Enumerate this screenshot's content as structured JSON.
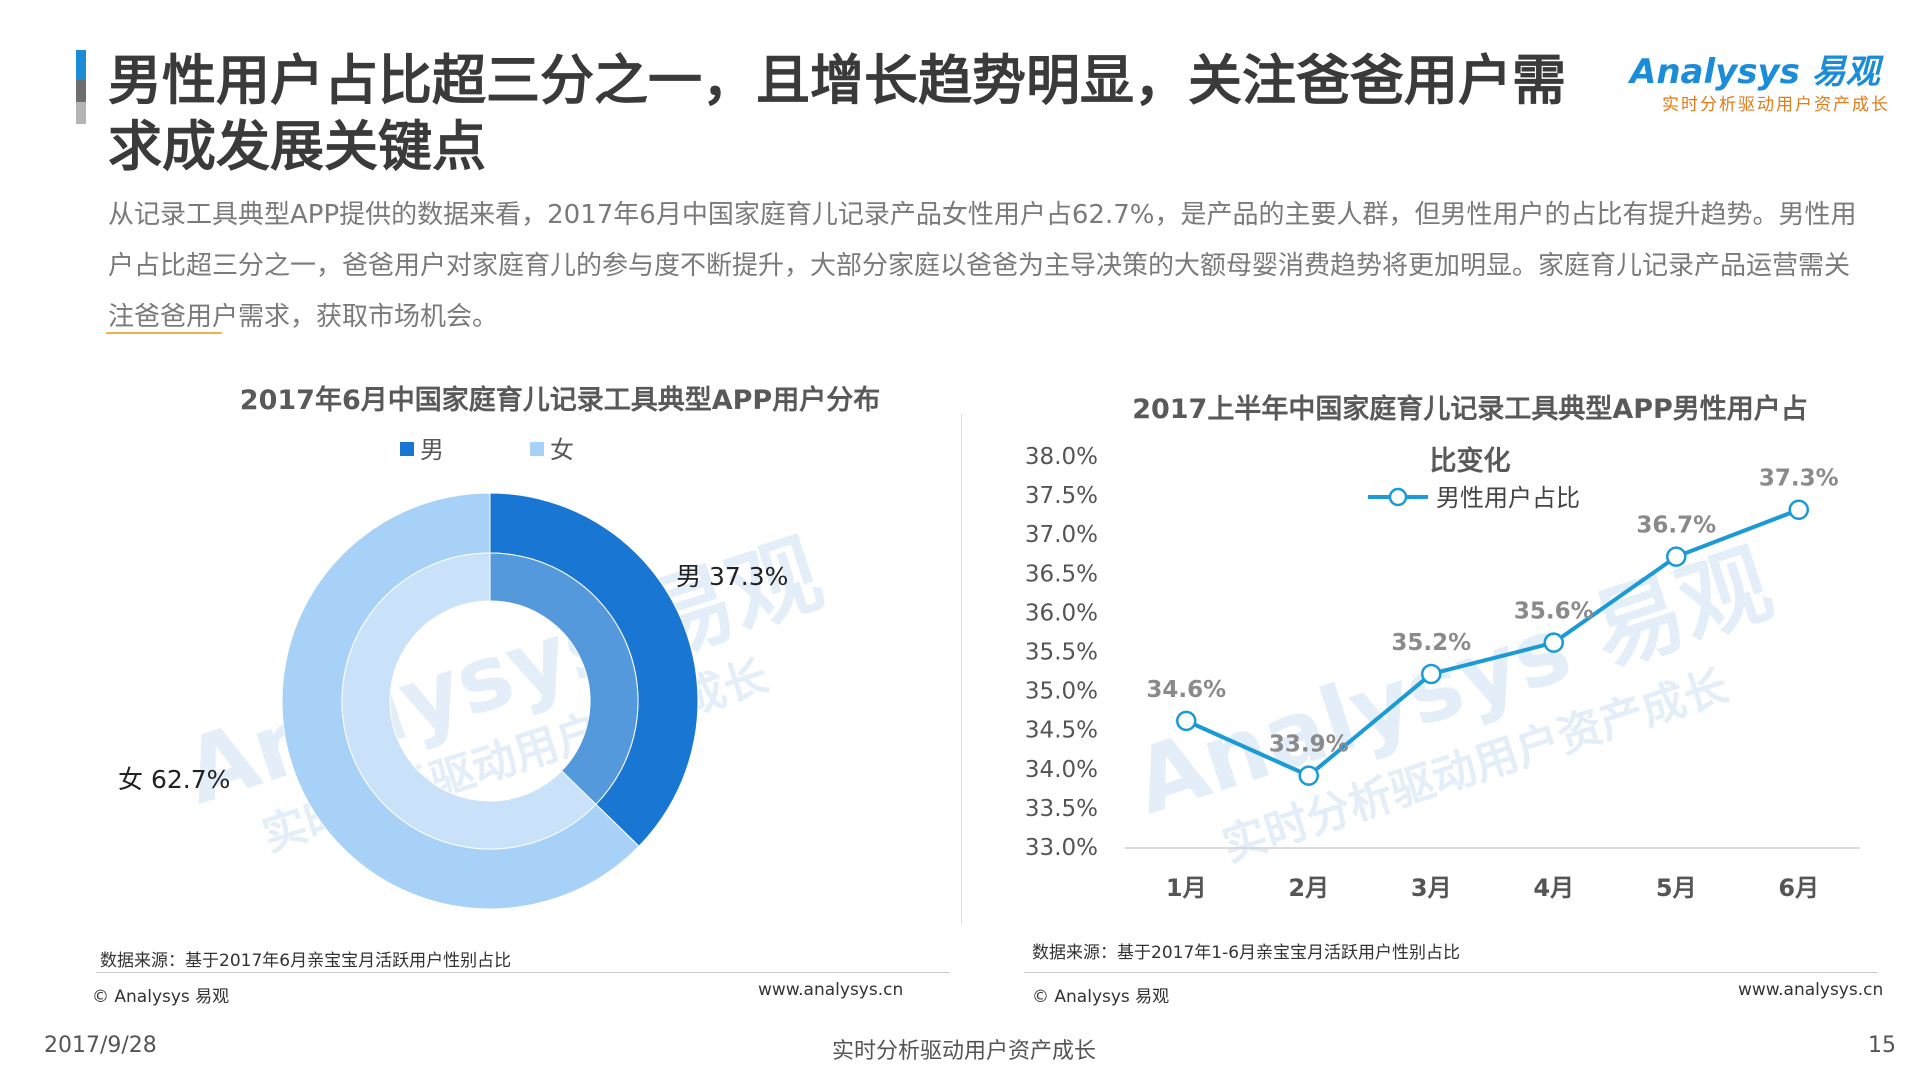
{
  "header": {
    "title": "男性用户占比超三分之一，且增长趋势明显，关注爸爸用户需求成发展关键点",
    "logo_text": "Analysys 易观",
    "logo_tagline": "实时分析驱动用户资产成长"
  },
  "intro": "从记录工具典型APP提供的数据来看，2017年6月中国家庭育儿记录产品女性用户占62.7%，是产品的主要人群，但男性用户的占比有提升趋势。男性用户占比超三分之一，爸爸用户对家庭育儿的参与度不断提升，大部分家庭以爸爸为主导决策的大额母婴消费趋势将更加明显。家庭育儿记录产品运营需关注爸爸用户需求，获取市场机会。",
  "watermark": {
    "brand": "Analysys 易观",
    "tagline": "实时分析驱动用户资产成长"
  },
  "chart_data": [
    {
      "type": "pie",
      "title": "2017年6月中国家庭育儿记录工具典型APP用户分布",
      "legend": [
        "男",
        "女"
      ],
      "categories": [
        "男",
        "女"
      ],
      "values": [
        37.3,
        62.7
      ],
      "labels": [
        "男 37.3%",
        "女 62.7%"
      ],
      "colors": [
        "#1976d2",
        "#a8d1f7"
      ],
      "legend_position": "top-left"
    },
    {
      "type": "line",
      "title": "2017上半年中国家庭育儿记录工具典型APP男性用户占比变化",
      "categories": [
        "1月",
        "2月",
        "3月",
        "4月",
        "5月",
        "6月"
      ],
      "series": [
        {
          "name": "男性用户占比",
          "values": [
            34.6,
            33.9,
            35.2,
            35.6,
            36.7,
            37.3
          ],
          "color": "#1a9ad6"
        }
      ],
      "data_labels": [
        "34.6%",
        "33.9%",
        "35.2%",
        "35.6%",
        "36.7%",
        "37.3%"
      ],
      "ylim": [
        33.0,
        38.0
      ],
      "yticks": [
        "33.0%",
        "33.5%",
        "34.0%",
        "34.5%",
        "35.0%",
        "35.5%",
        "36.0%",
        "36.5%",
        "37.0%",
        "37.5%",
        "38.0%"
      ],
      "grid": false,
      "legend_position": "top"
    }
  ],
  "left_footer": {
    "source": "数据来源：基于2017年6月亲宝宝月活跃用户性别占比",
    "copyright": "© Analysys 易观",
    "url": "www.analysys.cn"
  },
  "right_footer": {
    "source": "数据来源：基于2017年1-6月亲宝宝月活跃用户性别占比",
    "copyright": "© Analysys 易观",
    "url": "www.analysys.cn"
  },
  "page_footer": {
    "date": "2017/9/28",
    "tagline": "实时分析驱动用户资产成长",
    "page_number": "15"
  }
}
